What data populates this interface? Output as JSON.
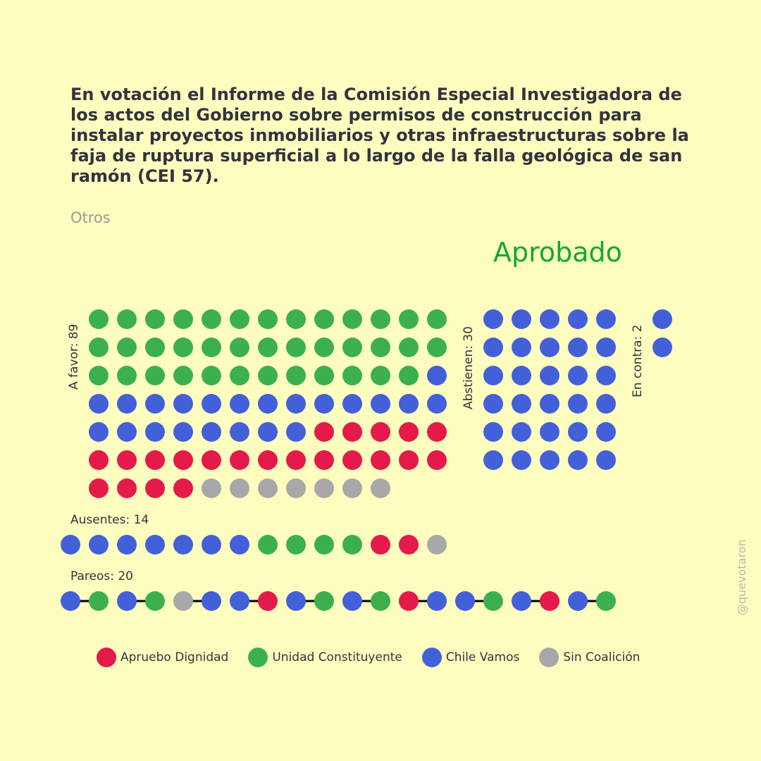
{
  "title": "En votación el Informe de la Comisión Especial Investigadora de los actos del Gobierno sobre permisos de construcción para instalar proyectos inmobiliarios y otras infraestructuras sobre la faja de ruptura superficial a lo largo de la falla geológica de san ramón (CEI 57).",
  "subtitle": "Otros",
  "result": "Aprobado",
  "watermark": "@quevotaron",
  "colors": {
    "background": "#fdfdbf",
    "result": "#14a82f",
    "R": "#e41a4b",
    "G": "#3cb04f",
    "B": "#4360d9",
    "S": "#a8a8a8",
    "pair_line": "#000000"
  },
  "legend": [
    {
      "key": "R",
      "label": "Apruebo Dignidad"
    },
    {
      "key": "G",
      "label": "Unidad Constituyente"
    },
    {
      "key": "B",
      "label": "Chile Vamos"
    },
    {
      "key": "S",
      "label": "Sin Coalición"
    }
  ],
  "labels": {
    "a_favor": "A favor: 89",
    "abstienen": "Abstienen: 30",
    "en_contra": "En contra: 2",
    "ausentes": "Ausentes: 14",
    "pareos": "Pareos: 20"
  },
  "chart_data": {
    "type": "dot-matrix",
    "groups": [
      {
        "name": "A favor",
        "count": 89,
        "rows": [
          "GGGGGGGGGGGGG",
          "GGGGGGGGGGGGG",
          "GGGGGGGGGGGGB",
          "BBBBBBBBBBBBB",
          "BBBBBBBBRRRRR",
          "RRRRRRRRRRRRR",
          "RRRRSSSSSSS"
        ]
      },
      {
        "name": "Abstienen",
        "count": 30,
        "rows": [
          "BBBBB",
          "BBBBB",
          "BBBBB",
          "BBBBB",
          "BBBBB",
          "BBBBB"
        ]
      },
      {
        "name": "En contra",
        "count": 2,
        "rows": [
          "B",
          "B"
        ]
      },
      {
        "name": "Ausentes",
        "count": 14,
        "rows": [
          "BBBBBBBGGGGRRS"
        ]
      },
      {
        "name": "Pareos",
        "count": 20,
        "rows": [
          "BGBGSBBRBGBGRBBGBRBG"
        ],
        "paired": true
      }
    ]
  }
}
